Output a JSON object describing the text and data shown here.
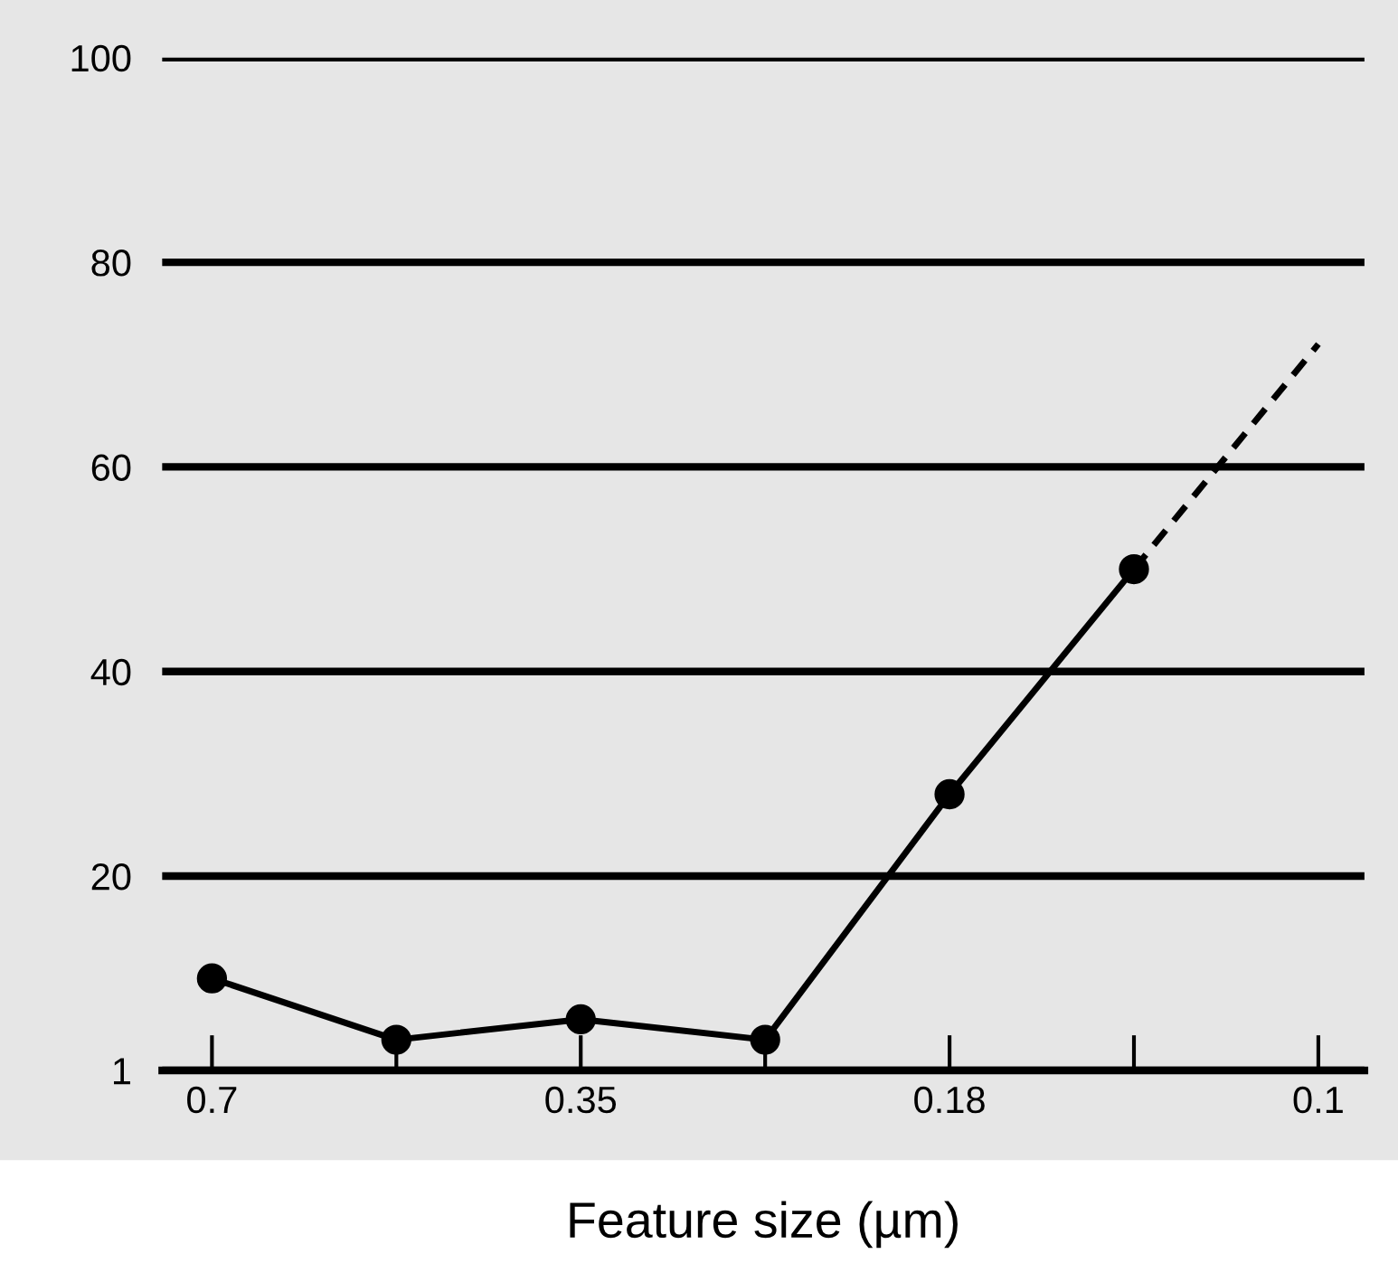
{
  "chart_data": {
    "type": "line",
    "xlabel": "Feature size (µm)",
    "categories": [
      "0.7",
      null,
      "0.35",
      null,
      "0.18",
      null,
      "0.1"
    ],
    "series": [
      {
        "color": "#000000",
        "values": [
          10,
          4,
          6,
          4,
          28,
          50,
          null
        ],
        "marker": "circle",
        "line_style": "solid"
      },
      {
        "color": "#000000",
        "values": [
          null,
          null,
          null,
          null,
          null,
          50,
          72
        ],
        "marker": "none",
        "line_style": "dashed"
      }
    ],
    "ylim": [
      1,
      100
    ],
    "yticks": [
      1,
      20,
      40,
      60,
      80,
      100
    ],
    "grid": "y",
    "legend": false
  }
}
